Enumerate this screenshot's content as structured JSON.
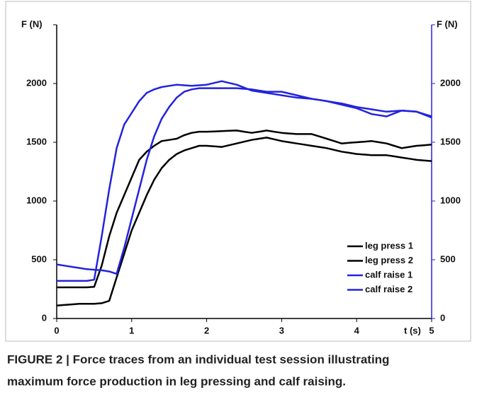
{
  "chart_data": {
    "type": "line",
    "y_label": "F (N)",
    "y2_label": "F (N)",
    "x_label": "t (s)",
    "x": [
      0,
      0.1,
      0.2,
      0.3,
      0.4,
      0.5,
      0.6,
      0.7,
      0.8,
      0.9,
      1.0,
      1.1,
      1.2,
      1.3,
      1.4,
      1.5,
      1.6,
      1.7,
      1.8,
      1.9,
      2.0,
      2.1,
      2.2,
      2.3,
      2.4,
      2.5,
      2.6,
      2.7,
      2.8,
      2.9,
      3.0,
      3.1,
      3.2,
      3.3,
      3.4,
      3.5,
      3.6,
      3.7,
      3.8,
      3.9,
      4.0,
      4.1,
      4.2,
      4.3,
      4.4,
      4.5,
      4.6,
      4.7,
      4.8,
      4.9,
      5.0
    ],
    "series": [
      {
        "name": "leg press 1",
        "color": "#000000",
        "values": [
          265,
          265,
          265,
          265,
          265,
          270,
          450,
          700,
          900,
          1050,
          1200,
          1350,
          1420,
          1470,
          1510,
          1520,
          1530,
          1560,
          1580,
          1590,
          1590,
          1592,
          1595,
          1598,
          1600,
          1590,
          1580,
          1590,
          1600,
          1590,
          1580,
          1575,
          1570,
          1570,
          1570,
          1550,
          1530,
          1510,
          1490,
          1495,
          1500,
          1505,
          1510,
          1500,
          1490,
          1470,
          1450,
          1460,
          1470,
          1475,
          1480
        ]
      },
      {
        "name": "leg press 2",
        "color": "#000000",
        "values": [
          110,
          115,
          120,
          125,
          125,
          125,
          130,
          150,
          350,
          550,
          750,
          900,
          1050,
          1180,
          1280,
          1350,
          1400,
          1430,
          1450,
          1470,
          1470,
          1465,
          1460,
          1475,
          1490,
          1505,
          1520,
          1530,
          1540,
          1525,
          1510,
          1500,
          1490,
          1480,
          1470,
          1460,
          1450,
          1435,
          1420,
          1410,
          1400,
          1395,
          1390,
          1390,
          1390,
          1380,
          1370,
          1360,
          1350,
          1345,
          1340
        ]
      },
      {
        "name": "calf raise 1",
        "color": "#2323dd",
        "axis": "y2",
        "values": [
          460,
          450,
          440,
          430,
          420,
          415,
          410,
          400,
          380,
          600,
          850,
          1100,
          1350,
          1550,
          1700,
          1800,
          1880,
          1930,
          1950,
          1960,
          1960,
          1960,
          1960,
          1960,
          1960,
          1955,
          1950,
          1940,
          1930,
          1930,
          1930,
          1915,
          1900,
          1885,
          1870,
          1860,
          1850,
          1840,
          1830,
          1815,
          1800,
          1790,
          1780,
          1770,
          1760,
          1765,
          1770,
          1765,
          1760,
          1740,
          1720
        ]
      },
      {
        "name": "calf raise 2",
        "color": "#2323dd",
        "axis": "y2",
        "values": [
          320,
          320,
          320,
          320,
          320,
          330,
          700,
          1100,
          1450,
          1650,
          1750,
          1850,
          1920,
          1950,
          1970,
          1980,
          1990,
          1985,
          1980,
          1985,
          1990,
          2005,
          2020,
          2005,
          1990,
          1965,
          1940,
          1930,
          1920,
          1910,
          1900,
          1890,
          1880,
          1875,
          1870,
          1860,
          1850,
          1835,
          1820,
          1805,
          1790,
          1765,
          1740,
          1730,
          1720,
          1745,
          1770,
          1765,
          1760,
          1735,
          1710
        ]
      }
    ],
    "xlim": [
      0,
      5
    ],
    "xticks": [
      0,
      1,
      2,
      3,
      4,
      5
    ],
    "ylim": [
      0,
      2500
    ],
    "yticks": [
      0,
      500,
      1000,
      1500,
      2000
    ],
    "y2lim": [
      0,
      2500
    ],
    "y2ticks": [
      0,
      500,
      1000,
      1500,
      2000
    ],
    "y2_color": "#2323dd",
    "legend": "lower right",
    "caption": [
      "FIGURE 2 | Force traces from an individual test session illustrating",
      "maximum force production in leg pressing and calf raising."
    ]
  }
}
